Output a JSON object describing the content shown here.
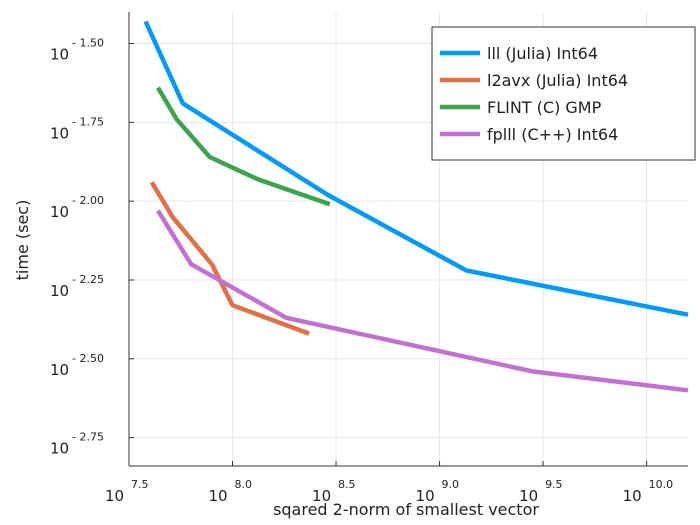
{
  "chart_data": {
    "type": "line",
    "title": "",
    "xlabel": "sqared 2-norm of smallest vector",
    "ylabel": "time (sec)",
    "x_scale": "log10",
    "y_scale": "log10",
    "xlim_log10": [
      7.5,
      10.2
    ],
    "ylim_log10": [
      -2.84,
      -1.4
    ],
    "x_ticks": [
      {
        "base": "10",
        "exp": "7.5",
        "log10": 7.5
      },
      {
        "base": "10",
        "exp": "8.0",
        "log10": 8.0
      },
      {
        "base": "10",
        "exp": "8.5",
        "log10": 8.5
      },
      {
        "base": "10",
        "exp": "9.0",
        "log10": 9.0
      },
      {
        "base": "10",
        "exp": "9.5",
        "log10": 9.5
      },
      {
        "base": "10",
        "exp": "10.0",
        "log10": 10.0
      }
    ],
    "y_ticks": [
      {
        "base": "10",
        "exp": "- 1.50",
        "log10": -1.5
      },
      {
        "base": "10",
        "exp": "- 1.75",
        "log10": -1.75
      },
      {
        "base": "10",
        "exp": "- 2.00",
        "log10": -2.0
      },
      {
        "base": "10",
        "exp": "- 2.25",
        "log10": -2.25
      },
      {
        "base": "10",
        "exp": "- 2.50",
        "log10": -2.5
      },
      {
        "base": "10",
        "exp": "- 2.75",
        "log10": -2.75
      }
    ],
    "grid": true,
    "legend_position": "top-right",
    "series": [
      {
        "name": "lll (Julia) Int64",
        "color": "#009af9",
        "points_log10": [
          [
            7.58,
            -1.43
          ],
          [
            7.76,
            -1.69
          ],
          [
            8.46,
            -1.98
          ],
          [
            9.13,
            -2.22
          ],
          [
            10.2,
            -2.36
          ]
        ]
      },
      {
        "name": "l2avx (Julia) Int64",
        "color": "#e26f46",
        "points_log10": [
          [
            7.61,
            -1.94
          ],
          [
            7.71,
            -2.05
          ],
          [
            7.9,
            -2.2
          ],
          [
            8.0,
            -2.33
          ],
          [
            8.37,
            -2.42
          ]
        ]
      },
      {
        "name": "FLINT (C) GMP",
        "color": "#3da44d",
        "points_log10": [
          [
            7.64,
            -1.64
          ],
          [
            7.73,
            -1.74
          ],
          [
            7.89,
            -1.86
          ],
          [
            8.12,
            -1.93
          ],
          [
            8.47,
            -2.01
          ]
        ]
      },
      {
        "name": "fplll (C++) Int64",
        "color": "#c271d2",
        "points_log10": [
          [
            7.64,
            -2.03
          ],
          [
            7.8,
            -2.2
          ],
          [
            8.26,
            -2.37
          ],
          [
            9.45,
            -2.54
          ],
          [
            10.2,
            -2.6
          ]
        ]
      }
    ]
  }
}
